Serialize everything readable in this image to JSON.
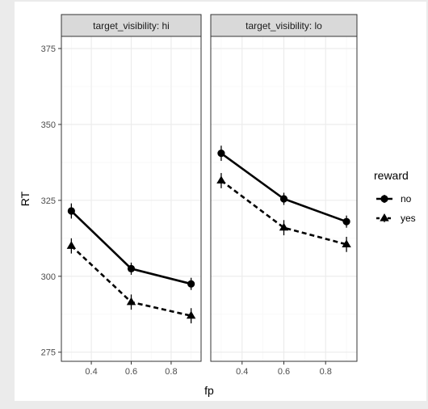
{
  "chart_data": {
    "type": "line",
    "facet_variable": "target_visibility",
    "facets": [
      {
        "label": "target_visibility: hi",
        "series": [
          {
            "name": "no",
            "x": [
              0.3,
              0.6,
              0.9
            ],
            "y": [
              321.5,
              302.5,
              297.5
            ],
            "err": [
              2.5,
              2,
              2
            ],
            "marker": "circle",
            "linestyle": "solid"
          },
          {
            "name": "yes",
            "x": [
              0.3,
              0.6,
              0.9
            ],
            "y": [
              310,
              291.5,
              287
            ],
            "err": [
              2.5,
              2.5,
              2.5
            ],
            "marker": "triangle",
            "linestyle": "dashed"
          }
        ]
      },
      {
        "label": "target_visibility: lo",
        "series": [
          {
            "name": "no",
            "x": [
              0.3,
              0.6,
              0.9
            ],
            "y": [
              340.5,
              325.5,
              318
            ],
            "err": [
              2.5,
              2,
              2
            ],
            "marker": "circle",
            "linestyle": "solid"
          },
          {
            "name": "yes",
            "x": [
              0.3,
              0.6,
              0.9
            ],
            "y": [
              331.5,
              316,
              310.5
            ],
            "err": [
              2.5,
              2.5,
              2.5
            ],
            "marker": "triangle",
            "linestyle": "dashed"
          }
        ]
      }
    ],
    "xlabel": "fp",
    "ylabel": "RT",
    "xlim": [
      0.25,
      0.95
    ],
    "ylim": [
      272,
      379
    ],
    "xticks": [
      0.4,
      0.6,
      0.8
    ],
    "xtick_labels": [
      "0.4",
      "0.6",
      "0.8"
    ],
    "yticks": [
      275,
      300,
      325,
      350,
      375
    ],
    "ytick_labels": [
      "275",
      "300",
      "325",
      "350",
      "375"
    ],
    "legend": {
      "title": "reward",
      "position": "right",
      "entries": [
        {
          "label": "no",
          "marker": "circle",
          "linestyle": "solid"
        },
        {
          "label": "yes",
          "marker": "triangle",
          "linestyle": "dashed"
        }
      ]
    },
    "grid": true,
    "theme": "bw",
    "colors": {
      "strip_fill": "#d9d9d9",
      "panel_border": "#333333",
      "grid_major": "#ebebeb",
      "grid_minor": "#f5f5f5",
      "line": "#000000",
      "background": "#ebebeb"
    }
  }
}
